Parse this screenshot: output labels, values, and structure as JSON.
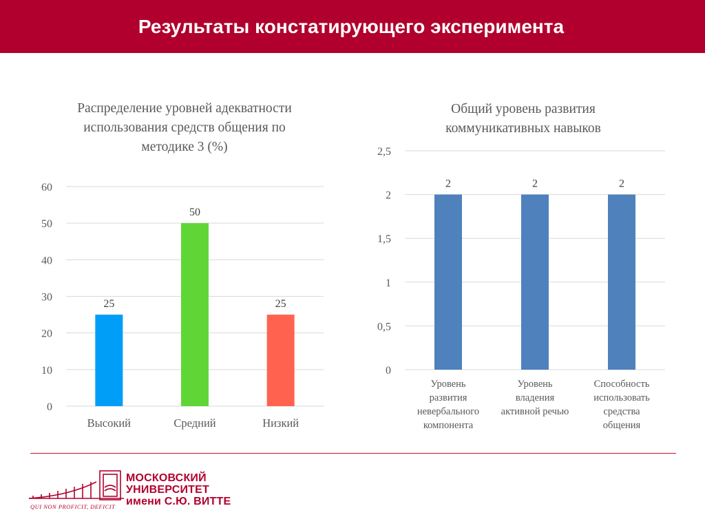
{
  "header": {
    "title": "Результаты констатирующего эксперимента"
  },
  "colors": {
    "header_bg": "#b1002d",
    "bar_high": "#009ef7",
    "bar_mid": "#5fd635",
    "bar_low": "#ff6350",
    "bar_blue": "#4f81bd"
  },
  "chart_data": [
    {
      "type": "bar",
      "title": "Распределение уровней адекватности использования средств общения по методике 3 (%)",
      "categories": [
        "Высокий",
        "Средний",
        "Низкий"
      ],
      "values": [
        25,
        50,
        25
      ],
      "data_labels": [
        "25",
        "50",
        "25"
      ],
      "ylim": [
        0,
        60
      ],
      "yticks": [
        "0",
        "10",
        "20",
        "30",
        "40",
        "50",
        "60"
      ],
      "grid": true
    },
    {
      "type": "bar",
      "title": "Общий уровень развития коммуникативных навыков",
      "categories": [
        "Уровень развития невербального компонента",
        "Уровень владения активной речью",
        "Способность использовать средства общения"
      ],
      "category_lines": [
        [
          "Уровень",
          "развития",
          "невербального",
          "компонента"
        ],
        [
          "Уровень",
          "владения",
          "активной речью"
        ],
        [
          "Способность",
          "использовать",
          "средства",
          "общения"
        ]
      ],
      "values": [
        2,
        2,
        2
      ],
      "data_labels": [
        "2",
        "2",
        "2"
      ],
      "ylim": [
        0,
        2.5
      ],
      "yticks": [
        "0",
        "0,5",
        "1",
        "1,5",
        "2",
        "2,5"
      ],
      "grid": true
    }
  ],
  "footer": {
    "logo_lines": [
      "МОСКОВСКИЙ",
      "УНИВЕРСИТЕТ",
      "имени С.Ю. ВИТТЕ"
    ],
    "motto": "QUI NON PROFICIT, DEFICIT"
  }
}
